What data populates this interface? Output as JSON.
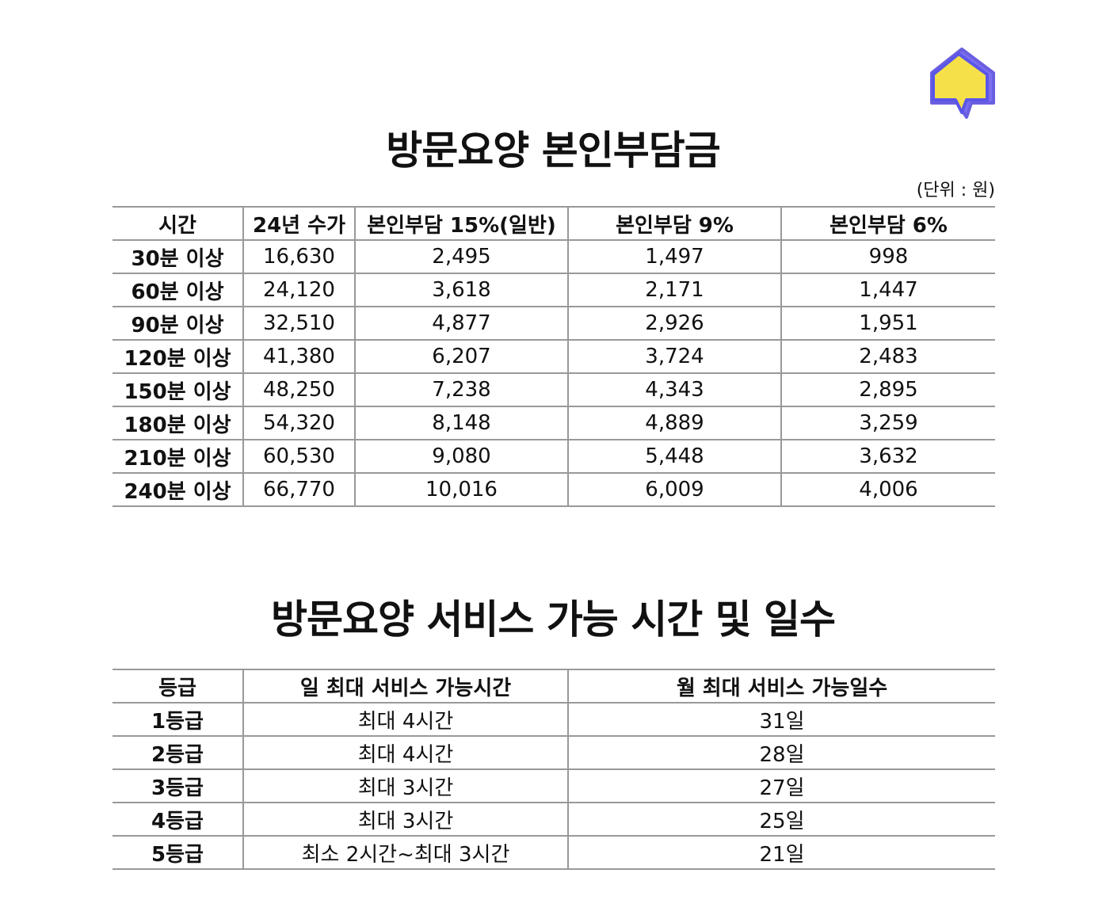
{
  "logo": {},
  "section1": {
    "title": "방문요양 본인부담금",
    "unit": "(단위 : 원)",
    "table": {
      "header": [
        "시간",
        "24년 수가",
        "본인부담 15%(일반)",
        "본인부담 9%",
        "본인부담 6%"
      ],
      "rows": [
        [
          "30분 이상",
          "16,630",
          "2,495",
          "1,497",
          "998"
        ],
        [
          "60분 이상",
          "24,120",
          "3,618",
          "2,171",
          "1,447"
        ],
        [
          "90분 이상",
          "32,510",
          "4,877",
          "2,926",
          "1,951"
        ],
        [
          "120분 이상",
          "41,380",
          "6,207",
          "3,724",
          "2,483"
        ],
        [
          "150분 이상",
          "48,250",
          "7,238",
          "4,343",
          "2,895"
        ],
        [
          "180분 이상",
          "54,320",
          "8,148",
          "4,889",
          "3,259"
        ],
        [
          "210분 이상",
          "60,530",
          "9,080",
          "5,448",
          "3,632"
        ],
        [
          "240분 이상",
          "66,770",
          "10,016",
          "6,009",
          "4,006"
        ]
      ]
    }
  },
  "section2": {
    "title": "방문요양 서비스 가능 시간 및 일수",
    "table": {
      "header": [
        "등급",
        "일 최대 서비스 가능시간",
        "월 최대 서비스 가능일수"
      ],
      "rows": [
        [
          "1등급",
          "최대 4시간",
          "31일"
        ],
        [
          "2등급",
          "최대 4시간",
          "28일"
        ],
        [
          "3등급",
          "최대 3시간",
          "27일"
        ],
        [
          "4등급",
          "최대 3시간",
          "25일"
        ],
        [
          "5등급",
          "최소 2시간~최대 3시간",
          "21일"
        ]
      ]
    }
  }
}
